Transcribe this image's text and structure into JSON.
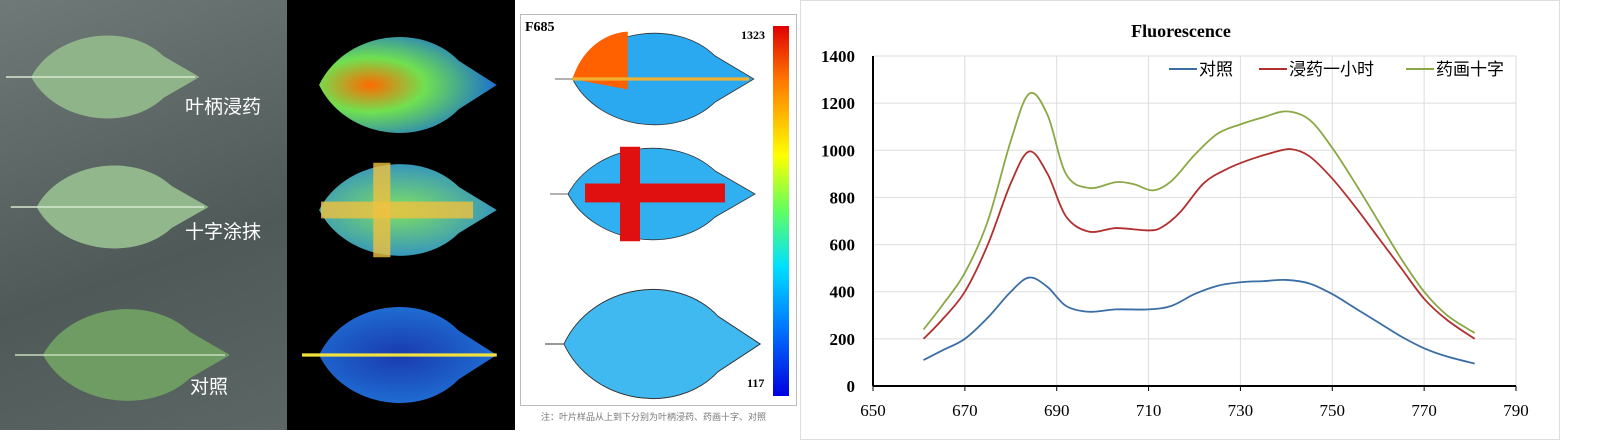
{
  "photo_panel": {
    "labels": [
      "叶柄浸药",
      "十字涂抹",
      "对照"
    ],
    "leaf_color": "#8fb48a"
  },
  "f685_panel": {
    "title": "F685",
    "colorbar_max": "1323",
    "colorbar_min": "117",
    "caption": "注：叶片样品从上到下分别为叶柄浸药、药画十字、对照"
  },
  "chart_data": {
    "type": "line",
    "title": "Fluorescence",
    "xlabel": "",
    "ylabel": "",
    "xlim": [
      650,
      790
    ],
    "ylim": [
      0,
      1400
    ],
    "xticks": [
      650,
      670,
      690,
      710,
      730,
      750,
      770,
      790
    ],
    "yticks": [
      0,
      200,
      400,
      600,
      800,
      1000,
      1200,
      1400
    ],
    "grid": true,
    "legend": "top-right",
    "series": [
      {
        "name": "对照",
        "color": "#3a6ea5",
        "x": [
          661,
          665,
          670,
          675,
          680,
          684,
          688,
          692,
          697,
          703,
          710,
          715,
          720,
          725,
          730,
          735,
          740,
          745,
          750,
          755,
          760,
          765,
          770,
          775,
          781
        ],
        "y": [
          110,
          150,
          200,
          290,
          400,
          460,
          420,
          340,
          315,
          325,
          325,
          340,
          390,
          425,
          440,
          445,
          450,
          435,
          390,
          330,
          270,
          210,
          160,
          125,
          95
        ]
      },
      {
        "name": "浸药一小时",
        "color": "#b03030",
        "x": [
          661,
          665,
          670,
          675,
          680,
          684,
          688,
          692,
          697,
          703,
          710,
          713,
          717,
          722,
          727,
          732,
          737,
          741,
          745,
          750,
          755,
          760,
          765,
          770,
          775,
          781
        ],
        "y": [
          200,
          280,
          400,
          600,
          860,
          995,
          900,
          720,
          655,
          670,
          660,
          675,
          740,
          860,
          920,
          960,
          990,
          1005,
          975,
          880,
          760,
          630,
          500,
          370,
          280,
          200
        ]
      },
      {
        "name": "药画十字",
        "color": "#8aa845",
        "x": [
          661,
          665,
          670,
          675,
          680,
          684,
          688,
          692,
          697,
          703,
          707,
          711,
          715,
          720,
          725,
          730,
          735,
          740,
          745,
          750,
          755,
          760,
          765,
          770,
          775,
          781
        ],
        "y": [
          240,
          340,
          480,
          700,
          1040,
          1240,
          1150,
          900,
          840,
          865,
          855,
          830,
          870,
          980,
          1070,
          1110,
          1140,
          1165,
          1130,
          1010,
          860,
          700,
          540,
          400,
          300,
          225
        ]
      }
    ]
  }
}
